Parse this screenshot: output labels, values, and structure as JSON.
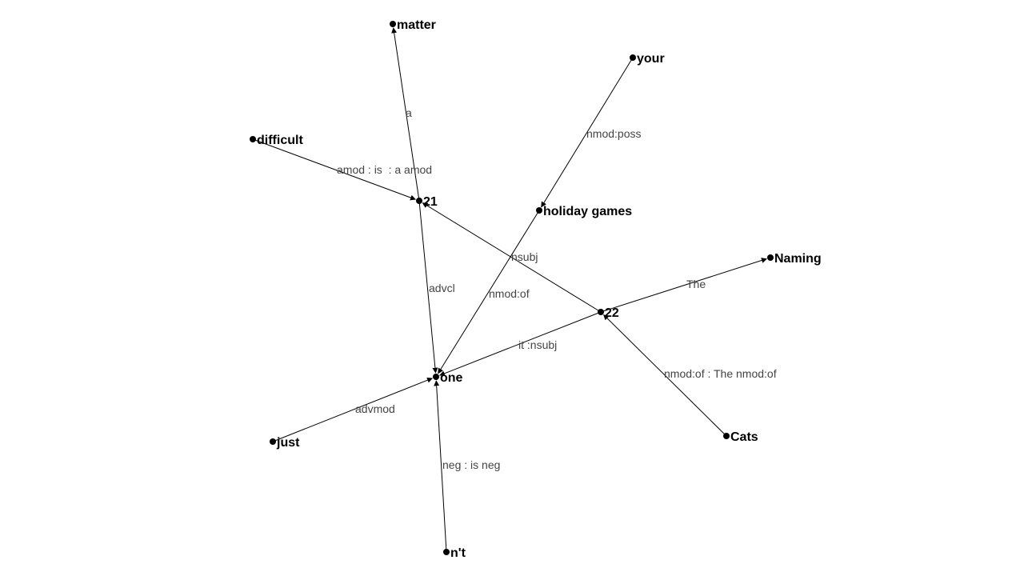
{
  "colors": {
    "node": "#000000",
    "edge": "#000000",
    "node_text": "#000000",
    "edge_text": "#444444",
    "background": "#ffffff"
  },
  "nodes": [
    {
      "id": "matter",
      "label": "matter"
    },
    {
      "id": "your",
      "label": "your"
    },
    {
      "id": "difficult",
      "label": "difficult"
    },
    {
      "id": "n21",
      "label": "21"
    },
    {
      "id": "holiday",
      "label": "holiday games"
    },
    {
      "id": "naming",
      "label": "Naming"
    },
    {
      "id": "n22",
      "label": "22"
    },
    {
      "id": "one",
      "label": "one"
    },
    {
      "id": "just",
      "label": "just"
    },
    {
      "id": "cats",
      "label": "Cats"
    },
    {
      "id": "nt",
      "label": "n't"
    }
  ],
  "edges": [
    {
      "id": "e1",
      "source": "n21",
      "target": "matter",
      "label": "a"
    },
    {
      "id": "e2",
      "source": "difficult",
      "target": "n21",
      "label": "amod : is  : a amod"
    },
    {
      "id": "e3",
      "source": "your",
      "target": "holiday",
      "label": "nmod:poss"
    },
    {
      "id": "e4",
      "source": "n22",
      "target": "n21",
      "label": "nsubj"
    },
    {
      "id": "e5",
      "source": "n21",
      "target": "one",
      "label": "advcl"
    },
    {
      "id": "e6",
      "source": "holiday",
      "target": "one",
      "label": "nmod:of"
    },
    {
      "id": "e7",
      "source": "n22",
      "target": "naming",
      "label": "The"
    },
    {
      "id": "e8",
      "source": "n22",
      "target": "one",
      "label": "it :nsubj"
    },
    {
      "id": "e9",
      "source": "cats",
      "target": "n22",
      "label": "nmod:of : The nmod:of"
    },
    {
      "id": "e10",
      "source": "just",
      "target": "one",
      "label": "advmod"
    },
    {
      "id": "e11",
      "source": "nt",
      "target": "one",
      "label": "neg : is neg"
    }
  ]
}
